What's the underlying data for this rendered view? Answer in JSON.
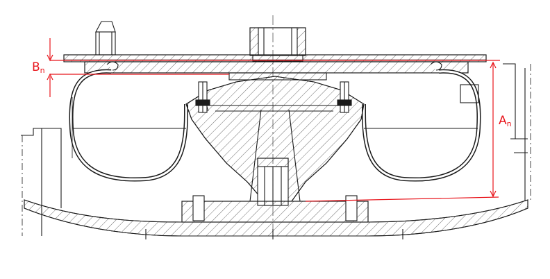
{
  "labels": {
    "a_main": "A",
    "a_sub": "n",
    "b_main": "B",
    "b_sub": "n"
  },
  "colors": {
    "line": "#1a1a1a",
    "dimension": "#e8141b",
    "hatch": "#4a4a4a"
  }
}
